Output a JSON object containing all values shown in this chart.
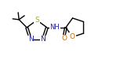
{
  "bg_color": "#ffffff",
  "bond_color": "#000000",
  "atom_colors": {
    "N": "#1a1aaa",
    "O": "#cc6600",
    "S": "#aaaa00",
    "C": "#000000"
  },
  "line_width": 1.0,
  "font_size": 6.5
}
